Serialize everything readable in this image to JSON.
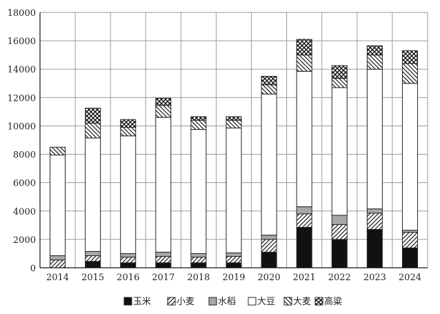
{
  "chart_data": {
    "type": "bar",
    "stacked": true,
    "categories": [
      "2014",
      "2015",
      "2016",
      "2017",
      "2018",
      "2019",
      "2020",
      "2021",
      "2022",
      "2023",
      "2024"
    ],
    "ylim": [
      0,
      18000
    ],
    "yticks": [
      0,
      2000,
      4000,
      6000,
      8000,
      10000,
      12000,
      14000,
      16000,
      18000
    ],
    "grid": "on",
    "legend_position": "bottom",
    "series": [
      {
        "name": "玉米",
        "fill": "solid-black",
        "color": "#111111",
        "values": [
          0,
          450,
          350,
          350,
          350,
          350,
          1100,
          2850,
          2000,
          2700,
          1400
        ]
      },
      {
        "name": "小麦",
        "fill": "diagonal-hatch",
        "color": "#333333",
        "values": [
          550,
          400,
          400,
          450,
          400,
          450,
          900,
          950,
          1050,
          1150,
          1100
        ]
      },
      {
        "name": "水稻",
        "fill": "solid-gray",
        "color": "#a8a8a8",
        "values": [
          300,
          300,
          250,
          300,
          250,
          250,
          300,
          500,
          650,
          300,
          150
        ]
      },
      {
        "name": "大豆",
        "fill": "white",
        "color": "#ffffff",
        "values": [
          7100,
          8000,
          8300,
          9500,
          8750,
          8800,
          9950,
          9550,
          9000,
          9850,
          10350
        ]
      },
      {
        "name": "大麦",
        "fill": "diagonal-hatch-reverse",
        "color": "#333333",
        "values": [
          550,
          1050,
          600,
          850,
          650,
          550,
          650,
          1150,
          650,
          1000,
          1400
        ]
      },
      {
        "name": "高粱",
        "fill": "crosshatch",
        "color": "#333333",
        "values": [
          0,
          1050,
          550,
          500,
          250,
          250,
          600,
          1100,
          900,
          650,
          900
        ]
      }
    ]
  }
}
